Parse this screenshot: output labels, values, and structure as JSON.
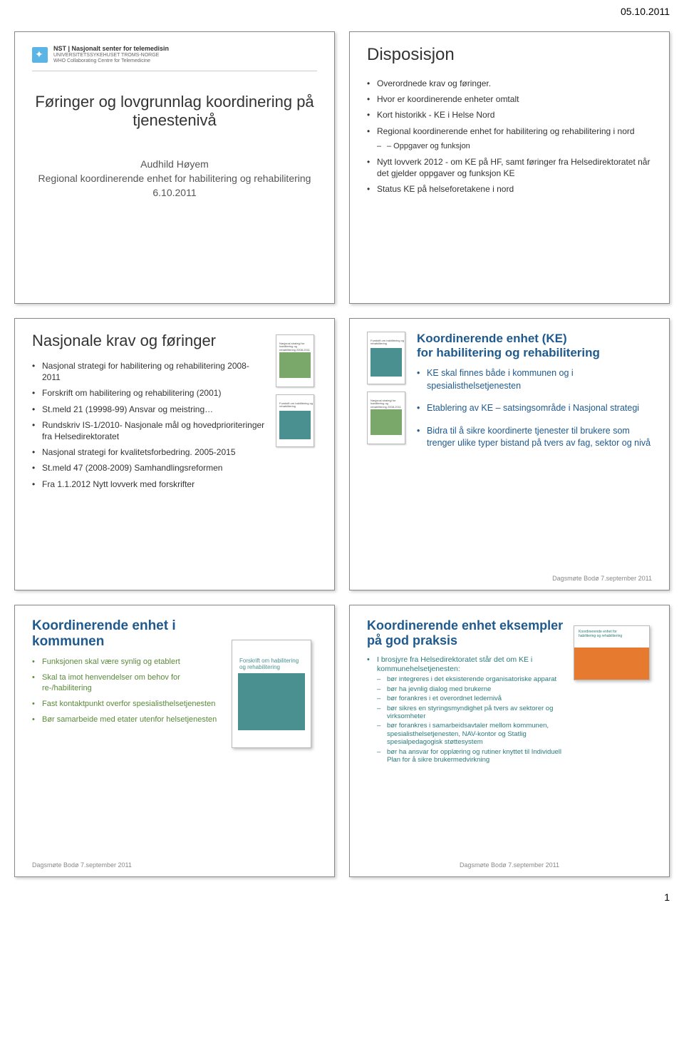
{
  "header_date": "05.10.2011",
  "page_number": "1",
  "footer_text": "Dagsmøte Bodø\n7.september 2011",
  "slide1": {
    "logo_main": "NST | Nasjonalt senter for telemedisin",
    "logo_sub1": "UNIVERSITETSSYKEHUSET TROMS-NORGE",
    "logo_sub2": "WHO Collaborating Centre for Telemedicine",
    "title": "Føringer og lovgrunnlag koordinering på tjenestenivå",
    "author_name": "Audhild Høyem",
    "author_role": "Regional koordinerende enhet for habilitering og rehabilitering",
    "author_date": "6.10.2011"
  },
  "slide2": {
    "title": "Disposisjon",
    "items": [
      "Overordnede krav og føringer.",
      "Hvor er koordinerende enheter omtalt",
      "Kort historikk - KE i Helse Nord",
      "Regional koordinerende enhet for habilitering og rehabilitering i nord",
      "Nytt lovverk 2012 - om KE på HF, samt føringer fra Helsedirektoratet når det gjelder oppgaver og funksjon KE",
      "Status KE på helseforetakene i nord"
    ],
    "sub_item": "– Oppgaver og funksjon"
  },
  "slide3": {
    "title": "Nasjonale krav og føringer",
    "items": [
      "Nasjonal strategi for habilitering og rehabilitering 2008-2011",
      "Forskrift om habilitering og rehabilitering (2001)",
      "St.meld 21 (19998-99) Ansvar og meistring…",
      "Rundskriv IS-1/2010- Nasjonale mål og hovedprioriteringer fra Helsedirektoratet",
      "Nasjonal strategi for kvalitetsforbedring. 2005-2015",
      "St.meld 47 (2008-2009) Samhandlingsreformen",
      "Fra 1.1.2012 Nytt lovverk med forskrifter"
    ]
  },
  "slide4": {
    "title_line1": "Koordinerende enhet (KE)",
    "title_line2": "for habilitering og rehabilitering",
    "items": [
      "KE skal finnes både i kommunen og i spesialisthelsetjenesten",
      "Etablering av KE – satsingsområde i Nasjonal strategi",
      "Bidra til å sikre koordinerte tjenester til brukere som trenger ulike typer bistand på tvers av fag, sektor og nivå"
    ]
  },
  "slide5": {
    "title": "Koordinerende enhet i kommunen",
    "items": [
      "Funksjonen skal være synlig og etablert",
      "Skal ta imot henvendelser om behov for re-/habilitering",
      "Fast kontaktpunkt overfor spesialisthelsetjenesten",
      "Bør samarbeide med etater utenfor helsetjenesten"
    ]
  },
  "slide6": {
    "title": "Koordinerende enhet eksempler på god praksis",
    "intro": "I brosjyre fra Helsedirektoratet står det om KE i kommunehelsetjenesten:",
    "items": [
      "bør integreres i det eksisterende organisatoriske apparat",
      "bør ha jevnlig dialog med brukerne",
      "bør forankres i et overordnet ledernivå",
      "bør sikres en styringsmyndighet på tvers av sektorer og virksomheter",
      "bør forankres i samarbeidsavtaler mellom kommunen, spesialisthelsetjenesten, NAV-kontor og Statlig spesialpedagogisk støttesystem",
      "bør ha ansvar for opplæring og rutiner knyttet til Individuell Plan for å sikre brukermedvirkning"
    ]
  }
}
